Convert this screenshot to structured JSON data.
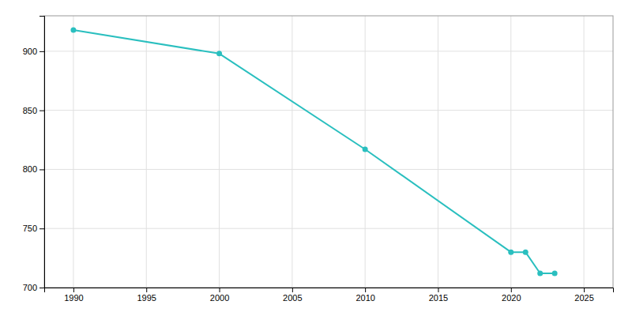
{
  "chart_data": {
    "type": "line",
    "x": [
      1990,
      2000,
      2010,
      2020,
      2021,
      2022,
      2023
    ],
    "values": [
      918,
      898,
      817,
      730,
      730,
      712,
      712
    ],
    "color": "#2abfbf",
    "marker": "circle",
    "xlim": [
      1988,
      2027
    ],
    "ylim": [
      700,
      930
    ],
    "xticks": [
      1990,
      1995,
      2000,
      2005,
      2010,
      2015,
      2020,
      2025
    ],
    "yticks": [
      700,
      750,
      800,
      850,
      900
    ],
    "grid": true
  }
}
